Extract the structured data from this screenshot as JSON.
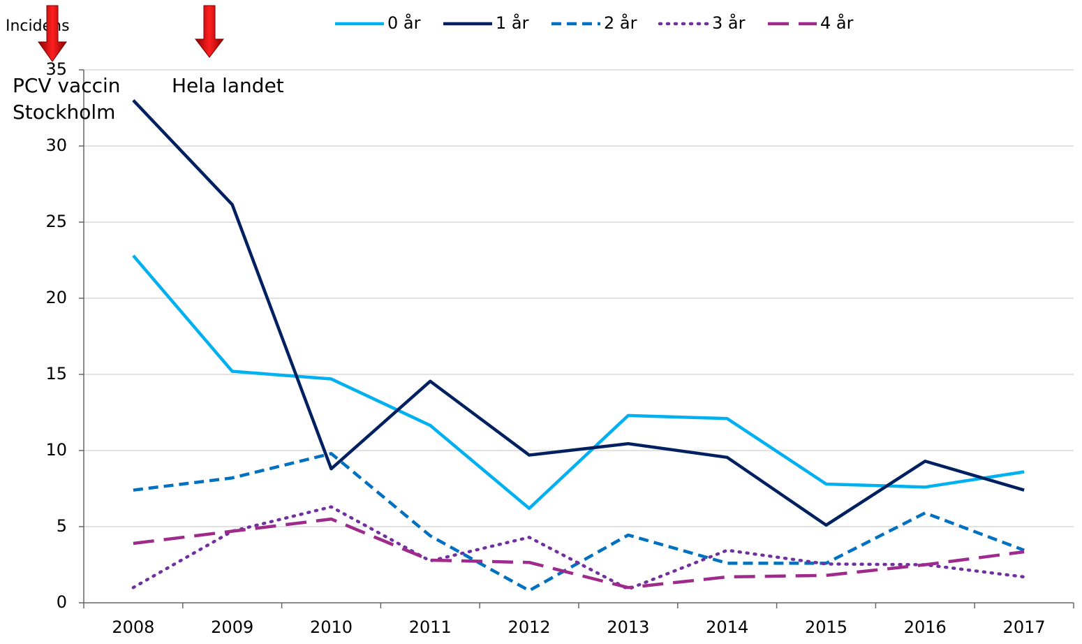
{
  "chart_data": {
    "type": "line",
    "ylabel": "Incidens",
    "annotations": [
      {
        "lines": [
          "PCV vaccin",
          "Stockholm"
        ]
      },
      {
        "lines": [
          "Hela landet"
        ]
      }
    ],
    "categories": [
      "2008",
      "2009",
      "2010",
      "2011",
      "2012",
      "2013",
      "2014",
      "2015",
      "2016",
      "2017"
    ],
    "series": [
      {
        "name": "0 år",
        "color": "#00b0f0",
        "style": "solid",
        "values": [
          22.8,
          15.2,
          14.7,
          11.65,
          6.2,
          12.3,
          12.1,
          7.8,
          7.6,
          8.6
        ]
      },
      {
        "name": "1 år",
        "color": "#002060",
        "style": "solid",
        "values": [
          33.0,
          26.15,
          8.8,
          14.55,
          9.7,
          10.45,
          9.55,
          5.1,
          9.3,
          7.4
        ]
      },
      {
        "name": "2 år",
        "color": "#0070c0",
        "style": "dashed",
        "values": [
          7.4,
          8.2,
          9.8,
          4.4,
          0.8,
          4.45,
          2.6,
          2.6,
          5.9,
          3.45
        ]
      },
      {
        "name": "3 år",
        "color": "#7030a0",
        "style": "dotted",
        "values": [
          1.0,
          4.7,
          6.3,
          2.75,
          4.3,
          0.9,
          3.45,
          2.55,
          2.5,
          1.7
        ]
      },
      {
        "name": "4 år",
        "color": "#9e2a8c",
        "style": "longdash",
        "values": [
          3.9,
          4.7,
          5.5,
          2.8,
          2.65,
          1.0,
          1.7,
          1.8,
          2.5,
          3.35
        ]
      }
    ],
    "ylim": [
      0,
      35
    ],
    "yticks": [
      0,
      5,
      10,
      15,
      20,
      25,
      30,
      35
    ],
    "grid": true,
    "legend": "top"
  }
}
